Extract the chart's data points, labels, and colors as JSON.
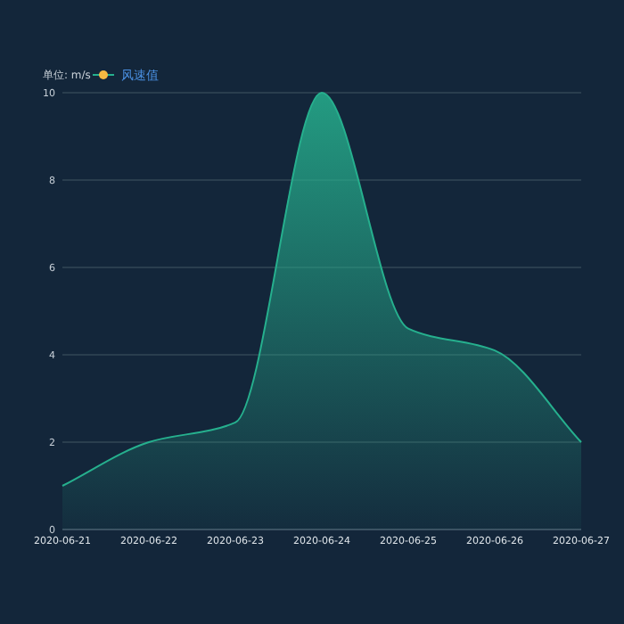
{
  "chart_data": {
    "type": "area",
    "ylabel": "单位: m/s",
    "x": [
      "2020-06-21",
      "2020-06-22",
      "2020-06-23",
      "2020-06-24",
      "2020-06-25",
      "2020-06-26",
      "2020-06-27"
    ],
    "xlim": [
      "2020-06-21",
      "2020-06-27"
    ],
    "xticks": [
      "2020-06-21",
      "2020-06-22",
      "2020-06-23",
      "2020-06-24",
      "2020-06-25",
      "2020-06-26",
      "2020-06-27"
    ],
    "ylim": [
      0,
      10
    ],
    "yticks": [
      0,
      2,
      4,
      6,
      8,
      10
    ],
    "grid": "y",
    "legend": "top left",
    "marker": "none",
    "line_style": "solid",
    "series": [
      {
        "name": "风速值",
        "color": "#26b08e",
        "values": [
          1,
          2,
          2.45,
          10,
          4.6,
          4.1,
          2
        ]
      }
    ]
  }
}
